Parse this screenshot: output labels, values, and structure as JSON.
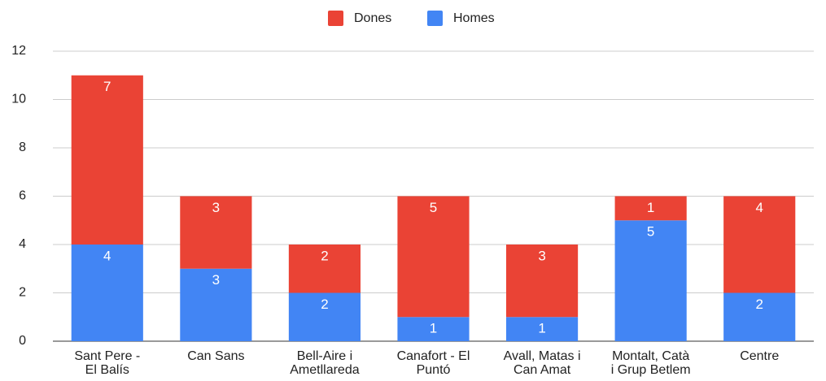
{
  "chart_data": {
    "type": "stacked_bar",
    "categories": [
      "Sant Pere -\nEl Balís",
      "Can Sans",
      "Bell-Aire i\nAmetllareda",
      "Canafort - El\nPuntó",
      "Avall, Matas i\nCan Amat",
      "Montalt, Catà\ni Grup Betlem",
      "Centre"
    ],
    "series": [
      {
        "name": "Dones",
        "color": "#ea4335",
        "values": [
          7,
          3,
          2,
          5,
          3,
          1,
          4
        ]
      },
      {
        "name": "Homes",
        "color": "#4285f4",
        "values": [
          4,
          3,
          2,
          1,
          1,
          5,
          2
        ]
      }
    ],
    "ylim": [
      0,
      12
    ],
    "yticks": [
      0,
      2,
      4,
      6,
      8,
      10,
      12
    ],
    "grid": true,
    "legend": "top"
  }
}
